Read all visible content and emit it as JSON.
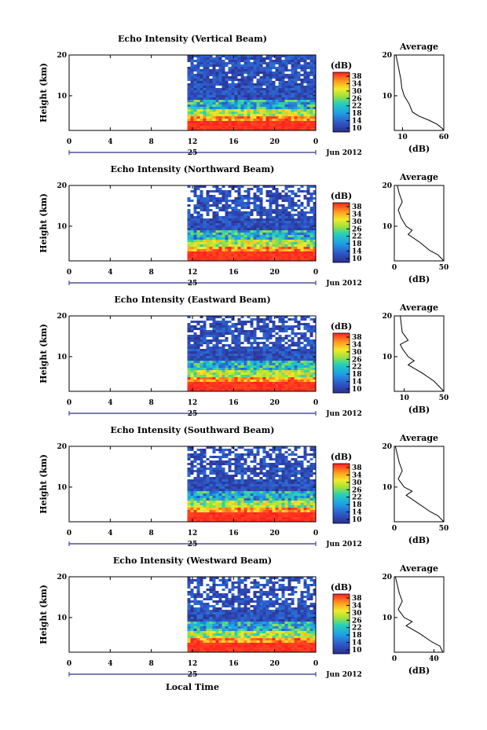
{
  "figure": {
    "xlabel": "Local Time",
    "date_label": "Jun 2012",
    "day_label": "25",
    "colorbar_unit": "(dB)",
    "average_title": "Average",
    "average_xlabel": "(dB)",
    "colors": {
      "red": "#ff2020",
      "navy": "#2a2f8a"
    }
  },
  "chart_data": [
    {
      "type": "heatmap",
      "title": "Echo Intensity (Vertical Beam)",
      "ylabel": "Height (km)",
      "x_ticks": [
        "0",
        "4",
        "8",
        "12",
        "16",
        "20",
        "0"
      ],
      "xlim": [
        0,
        24
      ],
      "y_ticks": [
        "20",
        "10"
      ],
      "ylim": [
        1.5,
        20
      ],
      "data_start_hour": 11.5,
      "colorbar": {
        "ticks": [
          "38",
          "34",
          "30",
          "26",
          "22",
          "18",
          "14",
          "10"
        ],
        "range": [
          10,
          40
        ]
      },
      "average": {
        "title": "Average",
        "x_ticks": [
          "10",
          "60"
        ],
        "xlim": [
          0,
          60
        ],
        "heights": [
          20,
          18,
          16,
          14,
          12,
          10,
          8,
          6,
          5,
          4,
          3,
          2,
          1.5
        ],
        "values": [
          2,
          4,
          6,
          8,
          9,
          12,
          18,
          22,
          30,
          42,
          52,
          58,
          60
        ]
      }
    },
    {
      "type": "heatmap",
      "title": "Echo Intensity (Northward Beam)",
      "ylabel": "Height (km)",
      "x_ticks": [
        "0",
        "4",
        "8",
        "12",
        "16",
        "20",
        "0"
      ],
      "xlim": [
        0,
        24
      ],
      "y_ticks": [
        "20",
        "10"
      ],
      "ylim": [
        1.5,
        20
      ],
      "data_start_hour": 11.5,
      "colorbar": {
        "ticks": [
          "38",
          "34",
          "30",
          "26",
          "22",
          "18",
          "14",
          "10"
        ],
        "range": [
          10,
          40
        ]
      },
      "average": {
        "title": "Average",
        "x_ticks": [
          "0",
          "50"
        ],
        "xlim": [
          0,
          50
        ],
        "heights": [
          20,
          18,
          16,
          14,
          12,
          10,
          9,
          8,
          6,
          4,
          3,
          2,
          1.5
        ],
        "values": [
          3,
          5,
          8,
          4,
          7,
          12,
          18,
          14,
          26,
          36,
          44,
          48,
          50
        ]
      }
    },
    {
      "type": "heatmap",
      "title": "Echo Intensity (Eastward Beam)",
      "ylabel": "Height (km)",
      "x_ticks": [
        "0",
        "4",
        "8",
        "12",
        "16",
        "20",
        "0"
      ],
      "xlim": [
        0,
        24
      ],
      "y_ticks": [
        "20",
        "10"
      ],
      "ylim": [
        1.5,
        20
      ],
      "data_start_hour": 11.5,
      "colorbar": {
        "ticks": [
          "38",
          "34",
          "30",
          "26",
          "22",
          "18",
          "14",
          "10"
        ],
        "range": [
          10,
          40
        ]
      },
      "average": {
        "title": "Average",
        "x_ticks": [
          "10",
          "50"
        ],
        "xlim": [
          0,
          50
        ],
        "heights": [
          20,
          18,
          16,
          14,
          13,
          12,
          10,
          9,
          8,
          6,
          4,
          2,
          1.5
        ],
        "values": [
          6,
          7,
          8,
          14,
          6,
          8,
          14,
          20,
          14,
          28,
          40,
          48,
          50
        ]
      }
    },
    {
      "type": "heatmap",
      "title": "Echo Intensity (Southward Beam)",
      "ylabel": "Height (km)",
      "x_ticks": [
        "0",
        "4",
        "8",
        "12",
        "16",
        "20",
        "0"
      ],
      "xlim": [
        0,
        24
      ],
      "y_ticks": [
        "20",
        "10"
      ],
      "ylim": [
        1.5,
        20
      ],
      "data_start_hour": 11.5,
      "colorbar": {
        "ticks": [
          "38",
          "34",
          "30",
          "26",
          "22",
          "18",
          "14",
          "10"
        ],
        "range": [
          10,
          40
        ]
      },
      "average": {
        "title": "Average",
        "x_ticks": [
          "0",
          "50"
        ],
        "xlim": [
          0,
          50
        ],
        "heights": [
          20,
          18,
          16,
          14,
          12,
          10,
          9,
          8,
          6,
          4,
          3,
          2,
          1.5
        ],
        "values": [
          1,
          3,
          5,
          8,
          4,
          10,
          18,
          12,
          24,
          36,
          44,
          48,
          50
        ]
      }
    },
    {
      "type": "heatmap",
      "title": "Echo Intensity (Westward Beam)",
      "ylabel": "Height (km)",
      "x_ticks": [
        "0",
        "4",
        "8",
        "12",
        "16",
        "20",
        "0"
      ],
      "xlim": [
        0,
        24
      ],
      "y_ticks": [
        "20",
        "10"
      ],
      "ylim": [
        1.5,
        20
      ],
      "data_start_hour": 11.5,
      "colorbar": {
        "ticks": [
          "38",
          "34",
          "30",
          "26",
          "22",
          "18",
          "14",
          "10"
        ],
        "range": [
          10,
          40
        ]
      },
      "average": {
        "title": "Average",
        "x_ticks": [
          "0",
          "40"
        ],
        "xlim": [
          0,
          50
        ],
        "heights": [
          20,
          18,
          16,
          14,
          12,
          10,
          9,
          8,
          6,
          4,
          3,
          2,
          1.5
        ],
        "values": [
          1,
          3,
          5,
          8,
          4,
          10,
          18,
          12,
          26,
          38,
          46,
          48,
          49
        ]
      }
    }
  ]
}
